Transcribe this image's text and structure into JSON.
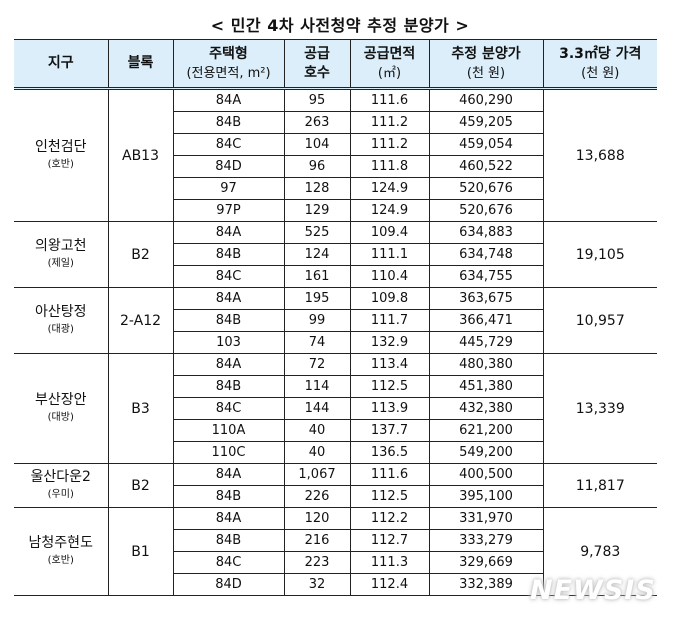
{
  "title": "< 민간 4차 사전청약 추정 분양가 >",
  "headers": {
    "district": "지구",
    "block": "블록",
    "type": "주택형",
    "type_sub": "(전용면적, m²)",
    "supply": "공급",
    "supply_sub": "호수",
    "area": "공급면적",
    "area_sub": "(㎡)",
    "price": "추정 분양가",
    "price_sub": "(천 원)",
    "ppa": "3.3㎡당 가격",
    "ppa_sub": "(천 원)"
  },
  "groups": [
    {
      "district": "인천검단",
      "company": "(호반)",
      "block": "AB13",
      "price_per_33": "13,688",
      "rows": [
        {
          "type": "84A",
          "units": "95",
          "area": "111.6",
          "price": "460,290"
        },
        {
          "type": "84B",
          "units": "263",
          "area": "111.2",
          "price": "459,205"
        },
        {
          "type": "84C",
          "units": "104",
          "area": "111.2",
          "price": "459,054"
        },
        {
          "type": "84D",
          "units": "96",
          "area": "111.8",
          "price": "460,522"
        },
        {
          "type": "97",
          "units": "128",
          "area": "124.9",
          "price": "520,676"
        },
        {
          "type": "97P",
          "units": "129",
          "area": "124.9",
          "price": "520,676"
        }
      ]
    },
    {
      "district": "의왕고천",
      "company": "(제일)",
      "block": "B2",
      "price_per_33": "19,105",
      "rows": [
        {
          "type": "84A",
          "units": "525",
          "area": "109.4",
          "price": "634,883"
        },
        {
          "type": "84B",
          "units": "124",
          "area": "111.1",
          "price": "634,748"
        },
        {
          "type": "84C",
          "units": "161",
          "area": "110.4",
          "price": "634,755"
        }
      ]
    },
    {
      "district": "아산탕정",
      "company": "(대광)",
      "block": "2-A12",
      "price_per_33": "10,957",
      "rows": [
        {
          "type": "84A",
          "units": "195",
          "area": "109.8",
          "price": "363,675"
        },
        {
          "type": "84B",
          "units": "99",
          "area": "111.7",
          "price": "366,471"
        },
        {
          "type": "103",
          "units": "74",
          "area": "132.9",
          "price": "445,729"
        }
      ]
    },
    {
      "district": "부산장안",
      "company": "(대방)",
      "block": "B3",
      "price_per_33": "13,339",
      "rows": [
        {
          "type": "84A",
          "units": "72",
          "area": "113.4",
          "price": "480,380"
        },
        {
          "type": "84B",
          "units": "114",
          "area": "112.5",
          "price": "451,380"
        },
        {
          "type": "84C",
          "units": "144",
          "area": "113.9",
          "price": "432,380"
        },
        {
          "type": "110A",
          "units": "40",
          "area": "137.7",
          "price": "621,200"
        },
        {
          "type": "110C",
          "units": "40",
          "area": "136.5",
          "price": "549,200"
        }
      ]
    },
    {
      "district": "울산다운2",
      "company": "(우미)",
      "block": "B2",
      "price_per_33": "11,817",
      "rows": [
        {
          "type": "84A",
          "units": "1,067",
          "area": "111.6",
          "price": "400,500"
        },
        {
          "type": "84B",
          "units": "226",
          "area": "112.5",
          "price": "395,100"
        }
      ]
    },
    {
      "district": "남청주현도",
      "company": "(호반)",
      "block": "B1",
      "price_per_33": "9,783",
      "rows": [
        {
          "type": "84A",
          "units": "120",
          "area": "112.2",
          "price": "331,970"
        },
        {
          "type": "84B",
          "units": "216",
          "area": "112.7",
          "price": "333,279"
        },
        {
          "type": "84C",
          "units": "223",
          "area": "111.3",
          "price": "329,669"
        },
        {
          "type": "84D",
          "units": "32",
          "area": "112.4",
          "price": "332,389"
        }
      ]
    }
  ],
  "watermark": "NEWSIS"
}
